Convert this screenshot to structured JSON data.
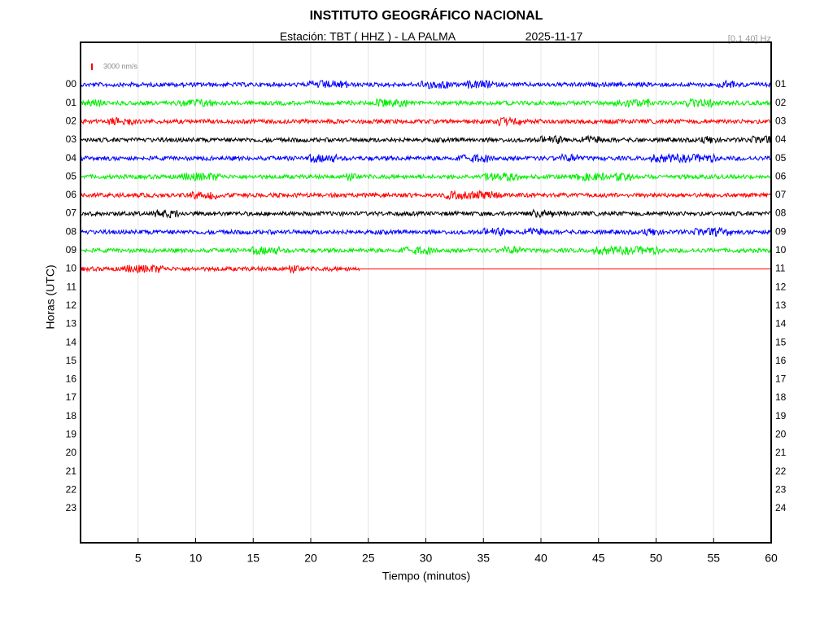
{
  "chart_data": {
    "type": "helicorder",
    "title": "INSTITUTO GEOGRÁFICO NACIONAL",
    "station": "Estación:  TBT ( HHZ ) - LA PALMA",
    "date": "2025-11-17",
    "filter": "[0.1 40] Hz",
    "scale_label": "3000 nm/s",
    "scale_color": "#ff0000",
    "ylabel": "Horas (UTC)",
    "xlabel": "Tiempo (minutos)",
    "xlim": [
      0,
      60
    ],
    "xticks": [
      5,
      10,
      15,
      20,
      25,
      30,
      35,
      40,
      45,
      50,
      55,
      60
    ],
    "grid": true,
    "row_labels_left": [
      "00",
      "01",
      "02",
      "03",
      "04",
      "05",
      "06",
      "07",
      "08",
      "09",
      "10",
      "11",
      "12",
      "13",
      "14",
      "15",
      "16",
      "17",
      "18",
      "19",
      "20",
      "21",
      "22",
      "23"
    ],
    "row_labels_right": [
      "01",
      "02",
      "03",
      "04",
      "05",
      "06",
      "07",
      "08",
      "09",
      "10",
      "11",
      "12",
      "13",
      "14",
      "15",
      "16",
      "17",
      "18",
      "19",
      "20",
      "21",
      "22",
      "23",
      "24"
    ],
    "traces": [
      {
        "color": "#0000ff",
        "end": 60
      },
      {
        "color": "#00ee00",
        "end": 60
      },
      {
        "color": "#ff0000",
        "end": 60
      },
      {
        "color": "#000000",
        "end": 60
      },
      {
        "color": "#0000ff",
        "end": 60
      },
      {
        "color": "#00ee00",
        "end": 60
      },
      {
        "color": "#ff0000",
        "end": 60
      },
      {
        "color": "#000000",
        "end": 60
      },
      {
        "color": "#0000ff",
        "end": 60
      },
      {
        "color": "#00ee00",
        "end": 60
      },
      {
        "color": "#ff0000",
        "end": 24.3
      }
    ]
  }
}
